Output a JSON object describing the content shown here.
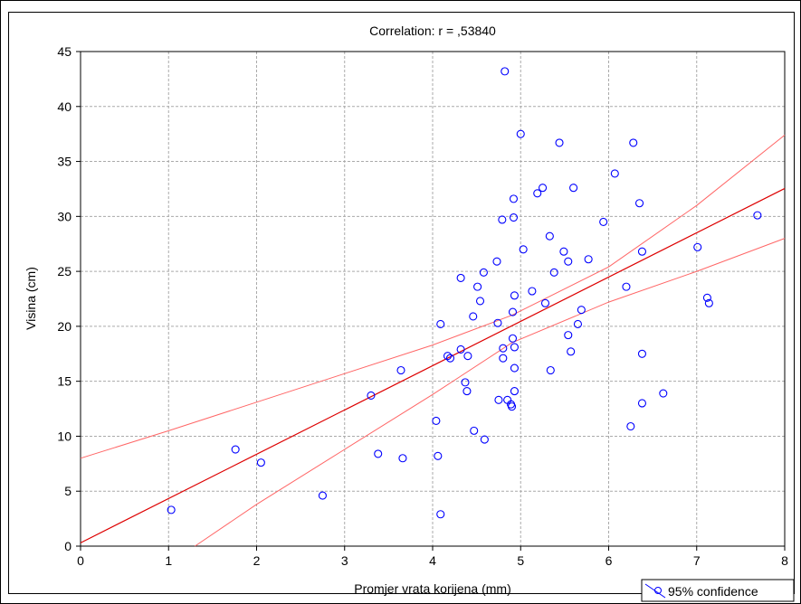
{
  "chart_data": {
    "type": "scatter",
    "title": "Correlation: r = ,53840",
    "xlabel": "Promjer vrata korijena (mm)",
    "ylabel": "Visina (cm)",
    "xlim": [
      0,
      8
    ],
    "ylim": [
      0,
      45
    ],
    "xticks": [
      0,
      1,
      2,
      3,
      4,
      5,
      6,
      7,
      8
    ],
    "yticks": [
      0,
      5,
      10,
      15,
      20,
      25,
      30,
      35,
      40,
      45
    ],
    "grid": true,
    "legend": {
      "label": "95% confidence",
      "placement": "bottom-right"
    },
    "colors": {
      "points": "#0000ff",
      "regression": "#dd0000",
      "confidence": "#ff6666",
      "grid": "#aaaaaa"
    },
    "regression_line": {
      "intercept": 0.3,
      "slope": 4.03
    },
    "confidence_band": {
      "upper": [
        [
          0,
          8.0
        ],
        [
          1,
          10.5
        ],
        [
          2,
          13.1
        ],
        [
          3,
          15.7
        ],
        [
          4,
          18.3
        ],
        [
          4.9,
          21.0
        ],
        [
          6,
          25.4
        ],
        [
          7,
          31.0
        ],
        [
          8,
          37.4
        ]
      ],
      "lower": [
        [
          1.3,
          0.0
        ],
        [
          2,
          3.8
        ],
        [
          3,
          8.8
        ],
        [
          4,
          13.8
        ],
        [
          4.9,
          18.5
        ],
        [
          6,
          22.2
        ],
        [
          7,
          25.0
        ],
        [
          8,
          28.0
        ]
      ]
    },
    "series": [
      {
        "points": [
          [
            1.03,
            3.3
          ],
          [
            1.76,
            8.8
          ],
          [
            2.05,
            7.6
          ],
          [
            2.75,
            4.6
          ],
          [
            3.3,
            13.7
          ],
          [
            3.38,
            8.4
          ],
          [
            3.64,
            16.0
          ],
          [
            3.66,
            8.0
          ],
          [
            4.04,
            11.4
          ],
          [
            4.06,
            8.2
          ],
          [
            4.09,
            2.9
          ],
          [
            4.09,
            20.2
          ],
          [
            4.17,
            17.3
          ],
          [
            4.2,
            17.1
          ],
          [
            4.32,
            17.9
          ],
          [
            4.32,
            24.4
          ],
          [
            4.37,
            14.9
          ],
          [
            4.39,
            14.1
          ],
          [
            4.4,
            17.3
          ],
          [
            4.46,
            20.9
          ],
          [
            4.47,
            10.5
          ],
          [
            4.51,
            23.6
          ],
          [
            4.54,
            22.3
          ],
          [
            4.58,
            24.9
          ],
          [
            4.59,
            9.7
          ],
          [
            4.73,
            25.9
          ],
          [
            4.74,
            20.3
          ],
          [
            4.75,
            13.3
          ],
          [
            4.79,
            29.7
          ],
          [
            4.8,
            17.1
          ],
          [
            4.8,
            18.0
          ],
          [
            4.82,
            43.2
          ],
          [
            4.85,
            13.3
          ],
          [
            4.89,
            12.9
          ],
          [
            4.9,
            12.7
          ],
          [
            4.91,
            21.3
          ],
          [
            4.91,
            18.9
          ],
          [
            4.92,
            31.6
          ],
          [
            4.92,
            29.9
          ],
          [
            4.93,
            22.8
          ],
          [
            4.93,
            18.1
          ],
          [
            4.93,
            16.2
          ],
          [
            4.93,
            14.1
          ],
          [
            5.0,
            37.5
          ],
          [
            5.03,
            27.0
          ],
          [
            5.13,
            23.2
          ],
          [
            5.19,
            32.1
          ],
          [
            5.25,
            32.6
          ],
          [
            5.28,
            22.1
          ],
          [
            5.33,
            28.2
          ],
          [
            5.34,
            16.0
          ],
          [
            5.38,
            24.9
          ],
          [
            5.44,
            36.7
          ],
          [
            5.49,
            26.8
          ],
          [
            5.54,
            25.9
          ],
          [
            5.54,
            19.2
          ],
          [
            5.57,
            17.7
          ],
          [
            5.6,
            32.6
          ],
          [
            5.65,
            20.2
          ],
          [
            5.69,
            21.5
          ],
          [
            5.77,
            26.1
          ],
          [
            5.94,
            29.5
          ],
          [
            6.07,
            33.9
          ],
          [
            6.2,
            23.6
          ],
          [
            6.25,
            10.9
          ],
          [
            6.28,
            36.7
          ],
          [
            6.35,
            31.2
          ],
          [
            6.38,
            26.8
          ],
          [
            6.38,
            17.5
          ],
          [
            6.38,
            13.0
          ],
          [
            6.62,
            13.9
          ],
          [
            7.01,
            27.2
          ],
          [
            7.12,
            22.6
          ],
          [
            7.14,
            22.1
          ],
          [
            7.69,
            30.1
          ]
        ]
      }
    ]
  }
}
